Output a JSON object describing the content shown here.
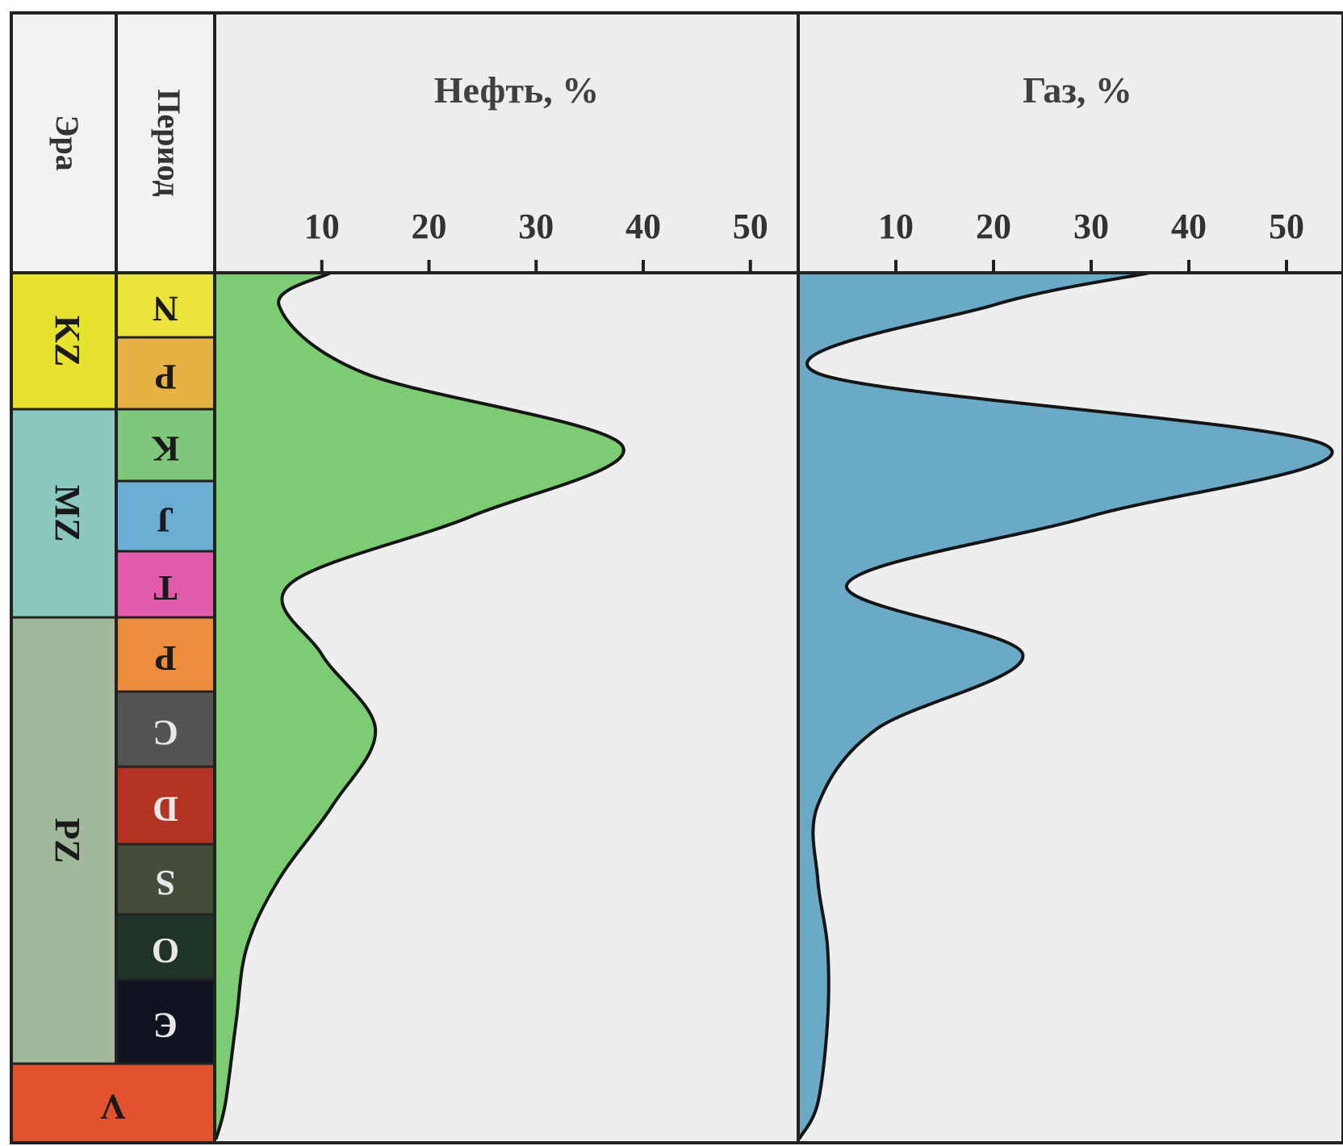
{
  "columns": {
    "era_header": "Эра",
    "period_header": "Период"
  },
  "eras": [
    {
      "label": "KZ",
      "color": "#e6e22e"
    },
    {
      "label": "MZ",
      "color": "#8cc7c0"
    },
    {
      "label": "PZ",
      "color": "#a2b89a"
    },
    {
      "label": "V",
      "color": "#e0532e"
    }
  ],
  "periods": [
    {
      "label": "N",
      "color": "#ebe43a"
    },
    {
      "label": "P",
      "color": "#e7b143"
    },
    {
      "label": "K",
      "color": "#7ec77b"
    },
    {
      "label": "J",
      "color": "#6aaed4"
    },
    {
      "label": "T",
      "color": "#e05cab"
    },
    {
      "label": "P",
      "color": "#eb8d3c"
    },
    {
      "label": "C",
      "color": "#555454"
    },
    {
      "label": "D",
      "color": "#b23323"
    },
    {
      "label": "S",
      "color": "#444c3a"
    },
    {
      "label": "O",
      "color": "#1f3326"
    },
    {
      "label": "Є",
      "color": "#111321"
    }
  ],
  "chart_data": [
    {
      "type": "area",
      "title": "Нефть, %",
      "orientation": "vertical-profile",
      "xlim": [
        0,
        55
      ],
      "xticks": [
        10,
        20,
        30,
        40,
        50
      ],
      "fill_color": "#7dcb72",
      "y_categories": [
        "N",
        "P",
        "K",
        "J",
        "T",
        "P",
        "C",
        "D",
        "S",
        "O",
        "Є",
        "V"
      ],
      "values": [
        6,
        14,
        38,
        24,
        7,
        10,
        15,
        11,
        6,
        3,
        2,
        1
      ]
    },
    {
      "type": "area",
      "title": "Газ, %",
      "orientation": "vertical-profile",
      "xlim": [
        0,
        55
      ],
      "xticks": [
        10,
        20,
        30,
        40,
        50
      ],
      "fill_color": "#6aaac6",
      "y_categories": [
        "N",
        "P",
        "K",
        "J",
        "T",
        "P",
        "C",
        "D",
        "S",
        "O",
        "Є",
        "V"
      ],
      "values": [
        20,
        2,
        54,
        30,
        5,
        23,
        8,
        2,
        2,
        3,
        3,
        2
      ]
    }
  ]
}
